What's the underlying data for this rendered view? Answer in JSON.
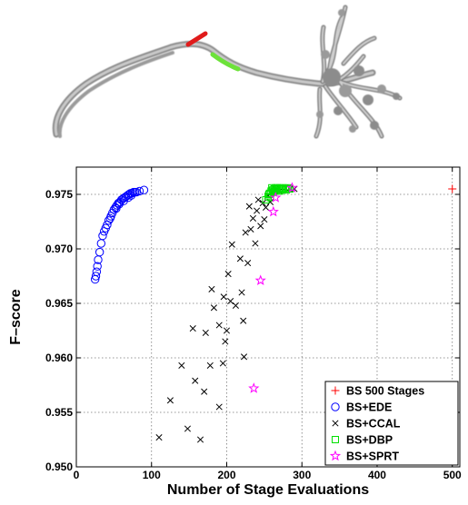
{
  "chart_data": {
    "type": "scatter",
    "xlabel": "Number of Stage Evaluations",
    "ylabel": "F–score",
    "xlim": [
      0,
      510
    ],
    "ylim": [
      0.95,
      0.9775
    ],
    "xticks": [
      0,
      100,
      200,
      300,
      400,
      500
    ],
    "yticks": [
      0.95,
      0.955,
      0.96,
      0.965,
      0.97,
      0.975
    ],
    "ytick_labels": [
      "0.950",
      "0.955",
      "0.960",
      "0.965",
      "0.970",
      "0.975"
    ],
    "grid": true,
    "legend_position": "bottom-right",
    "series": [
      {
        "name": "BS 500 Stages",
        "marker": "plus",
        "color": "#ff0000",
        "points": [
          [
            500,
            0.9755
          ]
        ]
      },
      {
        "name": "BS+EDE",
        "marker": "circle",
        "color": "#0000ff",
        "points": [
          [
            25,
            0.9672
          ],
          [
            26,
            0.9675
          ],
          [
            27,
            0.9679
          ],
          [
            28,
            0.9684
          ],
          [
            29,
            0.969
          ],
          [
            31,
            0.9697
          ],
          [
            33,
            0.9705
          ],
          [
            35,
            0.9712
          ],
          [
            37,
            0.9716
          ],
          [
            39,
            0.9719
          ],
          [
            41,
            0.9722
          ],
          [
            43,
            0.9726
          ],
          [
            46,
            0.973
          ],
          [
            48,
            0.9733
          ],
          [
            50,
            0.9736
          ],
          [
            52,
            0.9738
          ],
          [
            54,
            0.974
          ],
          [
            56,
            0.9742
          ],
          [
            58,
            0.9743
          ],
          [
            60,
            0.9745
          ],
          [
            62,
            0.9746
          ],
          [
            64,
            0.9747
          ],
          [
            66,
            0.9748
          ],
          [
            68,
            0.9749
          ],
          [
            70,
            0.975
          ],
          [
            72,
            0.9751
          ],
          [
            74,
            0.9751
          ],
          [
            76,
            0.9752
          ],
          [
            78,
            0.9752
          ],
          [
            80,
            0.9752
          ],
          [
            84,
            0.9753
          ],
          [
            90,
            0.9754
          ],
          [
            57,
            0.9741
          ],
          [
            63,
            0.9744
          ],
          [
            69,
            0.9747
          ],
          [
            73,
            0.9749
          ],
          [
            45,
            0.9728
          ],
          [
            53,
            0.9737
          ]
        ]
      },
      {
        "name": "BS+CCAL",
        "marker": "x",
        "color": "#000000",
        "points": [
          [
            110,
            0.9527
          ],
          [
            125,
            0.9561
          ],
          [
            140,
            0.9593
          ],
          [
            148,
            0.9535
          ],
          [
            155,
            0.9627
          ],
          [
            158,
            0.9579
          ],
          [
            165,
            0.9525
          ],
          [
            170,
            0.9569
          ],
          [
            172,
            0.9623
          ],
          [
            178,
            0.9593
          ],
          [
            180,
            0.9663
          ],
          [
            183,
            0.9646
          ],
          [
            190,
            0.9555
          ],
          [
            190,
            0.963
          ],
          [
            195,
            0.9595
          ],
          [
            196,
            0.9656
          ],
          [
            198,
            0.9615
          ],
          [
            200,
            0.9625
          ],
          [
            202,
            0.9677
          ],
          [
            205,
            0.9652
          ],
          [
            207,
            0.9704
          ],
          [
            212,
            0.9648
          ],
          [
            218,
            0.9691
          ],
          [
            220,
            0.966
          ],
          [
            222,
            0.9634
          ],
          [
            223,
            0.9601
          ],
          [
            225,
            0.9715
          ],
          [
            228,
            0.9687
          ],
          [
            230,
            0.9739
          ],
          [
            232,
            0.9718
          ],
          [
            235,
            0.9728
          ],
          [
            238,
            0.9705
          ],
          [
            240,
            0.9735
          ],
          [
            242,
            0.9745
          ],
          [
            245,
            0.9721
          ],
          [
            248,
            0.9742
          ],
          [
            250,
            0.9727
          ],
          [
            252,
            0.9738
          ],
          [
            255,
            0.9749
          ],
          [
            258,
            0.9743
          ],
          [
            260,
            0.9752
          ],
          [
            265,
            0.9755
          ],
          [
            270,
            0.9753
          ],
          [
            278,
            0.9756
          ],
          [
            290,
            0.9755
          ]
        ]
      },
      {
        "name": "BS+DBP",
        "marker": "square",
        "color": "#00e000",
        "points": [
          [
            252,
            0.9745
          ],
          [
            255,
            0.9748
          ],
          [
            257,
            0.9751
          ],
          [
            259,
            0.9753
          ],
          [
            261,
            0.9754
          ],
          [
            263,
            0.9755
          ],
          [
            265,
            0.9756
          ],
          [
            267,
            0.9756
          ],
          [
            269,
            0.9755
          ],
          [
            271,
            0.9756
          ],
          [
            273,
            0.9755
          ],
          [
            275,
            0.9756
          ],
          [
            278,
            0.9755
          ],
          [
            281,
            0.9756
          ],
          [
            284,
            0.9755
          ],
          [
            256,
            0.975
          ],
          [
            258,
            0.9747
          ],
          [
            262,
            0.9752
          ],
          [
            266,
            0.9754
          ],
          [
            270,
            0.9753
          ],
          [
            274,
            0.9754
          ],
          [
            279,
            0.9754
          ],
          [
            282,
            0.9755
          ],
          [
            260,
            0.9756
          ],
          [
            264,
            0.9753
          ]
        ]
      },
      {
        "name": "BS+SPRT",
        "marker": "star",
        "color": "#ff00ff",
        "points": [
          [
            236,
            0.9572
          ],
          [
            245,
            0.9671
          ],
          [
            262,
            0.9734
          ],
          [
            265,
            0.9747
          ],
          [
            287,
            0.9756
          ]
        ]
      }
    ]
  }
}
